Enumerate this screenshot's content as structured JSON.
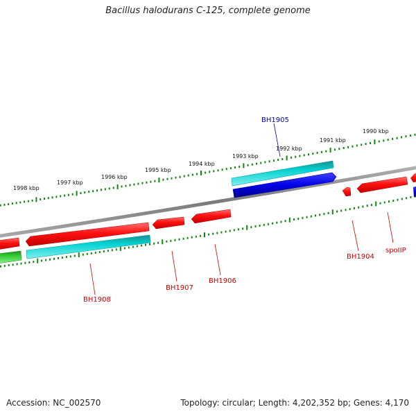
{
  "title": "Bacillus halodurans C-125, complete genome",
  "footer": {
    "accession": "Accession: NC_002570",
    "summary": "Topology: circular; Length: 4,202,352 bp; Genes: 4,170"
  },
  "colors": {
    "forward_cds": "#ff0000",
    "reverse_cds": "#00c8c8",
    "blue_cds": "#0000e0",
    "green_cds": "#33cc33",
    "backbone": "#808080",
    "tick": "#118811",
    "label_red": "#cc0000",
    "label_blue": "#0000aa"
  },
  "kbp_labels": [
    "1990 kbp",
    "1991 kbp",
    "1992 kbp",
    "1993 kbp",
    "1994 kbp",
    "1995 kbp",
    "1996 kbp",
    "1997 kbp",
    "1998 kbp"
  ],
  "gene_labels": [
    {
      "name": "BH1905",
      "color": "label_blue"
    },
    {
      "name": "BH1904",
      "color": "label_red"
    },
    {
      "name": "spoIIP",
      "color": "label_red"
    },
    {
      "name": "BH1906",
      "color": "label_red"
    },
    {
      "name": "BH1907",
      "color": "label_red"
    },
    {
      "name": "BH1908",
      "color": "label_red"
    }
  ]
}
